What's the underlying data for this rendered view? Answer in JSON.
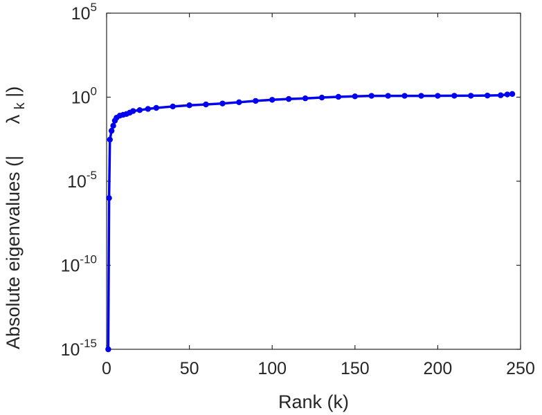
{
  "chart_data": {
    "type": "line",
    "title": "",
    "xlabel": "Rank (k)",
    "ylabel": {
      "main": "Absolute eigenvalues (|",
      "symbol": "λ",
      "subscript": "k",
      "close": "|)"
    },
    "xscale": "linear",
    "yscale": "log",
    "xlim": [
      0,
      250
    ],
    "ylim": [
      1e-15,
      100000.0
    ],
    "x_ticks": [
      0,
      50,
      100,
      150,
      200,
      250
    ],
    "y_ticks": [
      {
        "value": 100000.0,
        "base": "10",
        "exp": "5"
      },
      {
        "value": 1,
        "base": "10",
        "exp": "0"
      },
      {
        "value": 1e-05,
        "base": "10",
        "exp": "-5"
      },
      {
        "value": 1e-10,
        "base": "10",
        "exp": "-10"
      },
      {
        "value": 1e-15,
        "base": "10",
        "exp": "-15"
      }
    ],
    "grid": false,
    "marker": "circle",
    "series": [
      {
        "color": "#0000ee",
        "points": [
          [
            1,
            1e-15
          ],
          [
            1.5,
            1e-06
          ],
          [
            2,
            0.003
          ],
          [
            3,
            0.01
          ],
          [
            4,
            0.02
          ],
          [
            5,
            0.04
          ],
          [
            6,
            0.06
          ],
          [
            8,
            0.08
          ],
          [
            10,
            0.09
          ],
          [
            12,
            0.1
          ],
          [
            14,
            0.12
          ],
          [
            16,
            0.15
          ],
          [
            20,
            0.17
          ],
          [
            25,
            0.2
          ],
          [
            30,
            0.23
          ],
          [
            40,
            0.28
          ],
          [
            50,
            0.33
          ],
          [
            60,
            0.37
          ],
          [
            70,
            0.42
          ],
          [
            80,
            0.5
          ],
          [
            90,
            0.6
          ],
          [
            100,
            0.7
          ],
          [
            110,
            0.78
          ],
          [
            120,
            0.85
          ],
          [
            130,
            0.95
          ],
          [
            140,
            1.05
          ],
          [
            150,
            1.12
          ],
          [
            160,
            1.2
          ],
          [
            170,
            1.2
          ],
          [
            180,
            1.2
          ],
          [
            190,
            1.2
          ],
          [
            200,
            1.2
          ],
          [
            210,
            1.22
          ],
          [
            220,
            1.22
          ],
          [
            230,
            1.25
          ],
          [
            238,
            1.3
          ],
          [
            242,
            1.45
          ],
          [
            245,
            1.55
          ]
        ]
      }
    ]
  }
}
